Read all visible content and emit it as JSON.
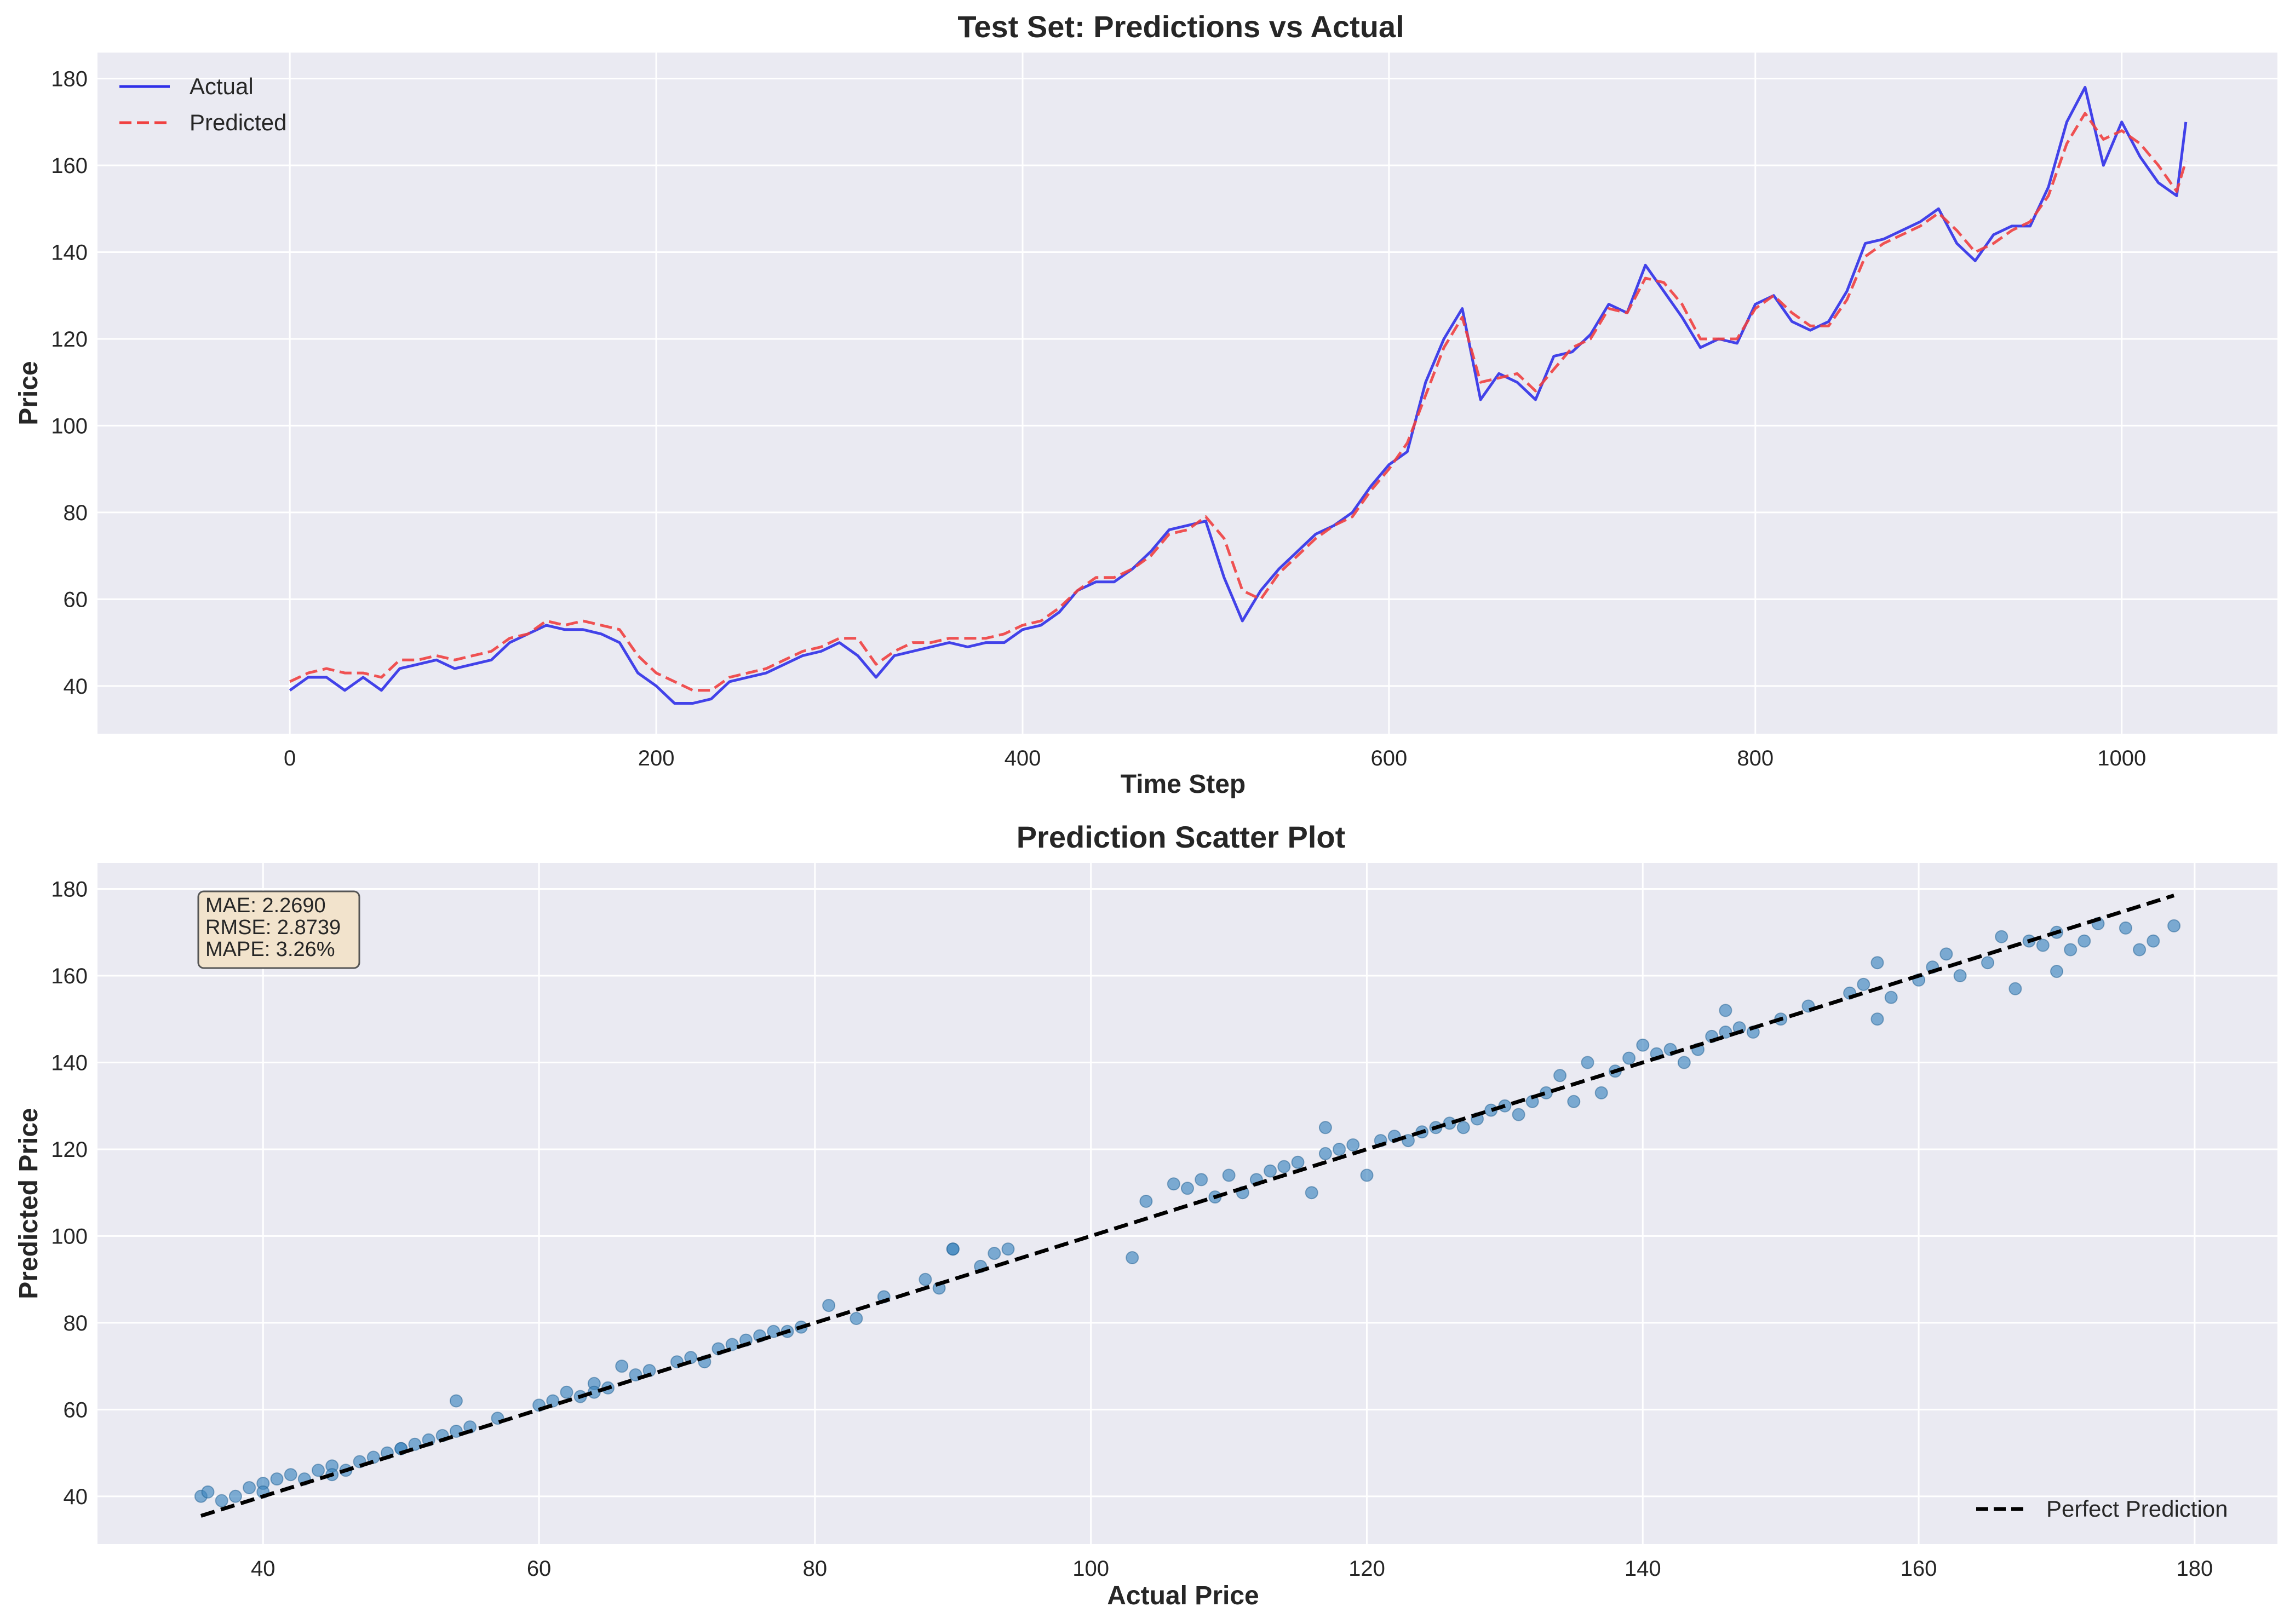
{
  "colors": {
    "actual": "#3030e8",
    "predicted": "#f04040",
    "scatter": "#3e86bf",
    "perfect": "#000000",
    "metrics_box_fill": "#f2e3cc",
    "metrics_box_stroke": "#555555"
  },
  "chart_data": [
    {
      "type": "line",
      "title": "Test Set: Predictions vs Actual",
      "xlabel": "Time Step",
      "ylabel": "Price",
      "xlim": [
        -105,
        1085
      ],
      "ylim": [
        29,
        186
      ],
      "xticks": [
        0,
        200,
        400,
        600,
        800,
        1000
      ],
      "yticks": [
        40,
        60,
        80,
        100,
        120,
        140,
        160,
        180
      ],
      "grid": true,
      "legend_position": "upper-left",
      "series": [
        {
          "name": "Actual",
          "style": "solid",
          "x": [
            0,
            10,
            20,
            30,
            40,
            50,
            60,
            70,
            80,
            90,
            100,
            110,
            120,
            130,
            140,
            150,
            160,
            170,
            180,
            190,
            200,
            210,
            220,
            230,
            240,
            250,
            260,
            270,
            280,
            290,
            300,
            310,
            320,
            330,
            340,
            350,
            360,
            370,
            380,
            390,
            400,
            410,
            420,
            430,
            440,
            450,
            460,
            470,
            480,
            490,
            500,
            510,
            520,
            530,
            540,
            550,
            560,
            570,
            580,
            590,
            600,
            610,
            620,
            630,
            640,
            650,
            660,
            670,
            680,
            690,
            700,
            710,
            720,
            730,
            740,
            750,
            760,
            770,
            780,
            790,
            800,
            810,
            820,
            830,
            840,
            850,
            860,
            870,
            880,
            890,
            900,
            910,
            920,
            930,
            940,
            950,
            960,
            970,
            980,
            990,
            1000,
            1010,
            1020,
            1030,
            1035
          ],
          "values": [
            39,
            42,
            42,
            39,
            42,
            39,
            44,
            45,
            46,
            44,
            45,
            46,
            50,
            52,
            54,
            53,
            53,
            52,
            50,
            43,
            40,
            36,
            36,
            37,
            41,
            42,
            43,
            45,
            47,
            48,
            50,
            47,
            42,
            47,
            48,
            49,
            50,
            49,
            50,
            50,
            53,
            54,
            57,
            62,
            64,
            64,
            67,
            71,
            76,
            77,
            78,
            65,
            55,
            62,
            67,
            71,
            75,
            77,
            80,
            86,
            91,
            94,
            110,
            120,
            127,
            106,
            112,
            110,
            106,
            116,
            117,
            121,
            128,
            126,
            137,
            131,
            125,
            118,
            120,
            119,
            128,
            130,
            124,
            122,
            124,
            131,
            142,
            143,
            145,
            147,
            150,
            142,
            138,
            144,
            146,
            146,
            155,
            170,
            178,
            160,
            170,
            162,
            156,
            153,
            170
          ]
        },
        {
          "name": "Predicted",
          "style": "dashed",
          "x": [
            0,
            10,
            20,
            30,
            40,
            50,
            60,
            70,
            80,
            90,
            100,
            110,
            120,
            130,
            140,
            150,
            160,
            170,
            180,
            190,
            200,
            210,
            220,
            230,
            240,
            250,
            260,
            270,
            280,
            290,
            300,
            310,
            320,
            330,
            340,
            350,
            360,
            370,
            380,
            390,
            400,
            410,
            420,
            430,
            440,
            450,
            460,
            470,
            480,
            490,
            500,
            510,
            520,
            530,
            540,
            550,
            560,
            570,
            580,
            590,
            600,
            610,
            620,
            630,
            640,
            650,
            660,
            670,
            680,
            690,
            700,
            710,
            720,
            730,
            740,
            750,
            760,
            770,
            780,
            790,
            800,
            810,
            820,
            830,
            840,
            850,
            860,
            870,
            880,
            890,
            900,
            910,
            920,
            930,
            940,
            950,
            960,
            970,
            980,
            990,
            1000,
            1010,
            1020,
            1030,
            1035
          ],
          "values": [
            41,
            43,
            44,
            43,
            43,
            42,
            46,
            46,
            47,
            46,
            47,
            48,
            51,
            52,
            55,
            54,
            55,
            54,
            53,
            47,
            43,
            41,
            39,
            39,
            42,
            43,
            44,
            46,
            48,
            49,
            51,
            51,
            45,
            48,
            50,
            50,
            51,
            51,
            51,
            52,
            54,
            55,
            58,
            62,
            65,
            65,
            67,
            70,
            75,
            76,
            79,
            74,
            62,
            60,
            66,
            70,
            74,
            77,
            79,
            85,
            90,
            96,
            107,
            118,
            125,
            110,
            111,
            112,
            108,
            113,
            118,
            120,
            127,
            126,
            134,
            133,
            128,
            120,
            120,
            120,
            127,
            130,
            126,
            123,
            123,
            129,
            139,
            142,
            144,
            146,
            149,
            145,
            140,
            142,
            145,
            147,
            153,
            165,
            172,
            166,
            168,
            165,
            160,
            154,
            161
          ]
        }
      ]
    },
    {
      "type": "scatter",
      "title": "Prediction Scatter Plot",
      "xlabel": "Actual Price",
      "ylabel": "Predicted Price",
      "xlim": [
        28,
        186
      ],
      "ylim": [
        29,
        186
      ],
      "xticks": [
        40,
        60,
        80,
        100,
        120,
        140,
        160,
        180
      ],
      "yticks": [
        40,
        60,
        80,
        100,
        120,
        140,
        160,
        180
      ],
      "grid": true,
      "legend_position": "lower-right",
      "metrics": [
        "MAE: 2.2690",
        "RMSE: 2.8739",
        "MAPE: 3.26%"
      ],
      "reference_line": {
        "name": "Perfect Prediction",
        "x": [
          35.5,
          178.5
        ],
        "y": [
          35.5,
          178.5
        ],
        "style": "dashed"
      },
      "series": [
        {
          "name": "",
          "x": [
            35.5,
            36,
            37,
            38,
            39,
            40,
            41,
            42,
            43,
            44,
            45,
            46,
            47,
            48,
            49,
            50,
            51,
            52,
            53,
            54,
            55,
            57,
            60,
            61,
            62,
            63,
            64,
            65,
            66,
            67,
            68,
            70,
            71,
            72,
            73,
            74,
            75,
            76,
            77,
            78,
            79,
            81,
            83,
            85,
            88,
            89,
            90,
            92,
            93,
            94,
            103,
            104,
            106,
            107,
            108,
            109,
            110,
            111,
            112,
            113,
            114,
            115,
            116,
            117,
            118,
            119,
            120,
            121,
            122,
            123,
            124,
            125,
            126,
            127,
            128,
            129,
            130,
            131,
            132,
            133,
            134,
            135,
            136,
            137,
            138,
            139,
            140,
            141,
            142,
            143,
            144,
            145,
            146,
            147,
            148,
            150,
            152,
            155,
            156,
            157,
            158,
            160,
            161,
            162,
            163,
            165,
            166,
            167,
            168,
            169,
            170,
            171,
            172,
            173,
            175,
            176,
            177,
            178.5,
            40,
            45,
            50,
            54,
            64,
            90,
            117,
            146,
            157,
            170
          ],
          "values": [
            40,
            41,
            39,
            40,
            42,
            43,
            44,
            45,
            44,
            46,
            47,
            46,
            48,
            49,
            50,
            51,
            52,
            53,
            54,
            55,
            56,
            58,
            61,
            62,
            64,
            63,
            66,
            65,
            70,
            68,
            69,
            71,
            72,
            71,
            74,
            75,
            76,
            77,
            78,
            78,
            79,
            84,
            81,
            86,
            90,
            88,
            97,
            93,
            96,
            97,
            95,
            108,
            112,
            111,
            113,
            109,
            114,
            110,
            113,
            115,
            116,
            117,
            110,
            119,
            120,
            121,
            114,
            122,
            123,
            122,
            124,
            125,
            126,
            125,
            127,
            129,
            130,
            128,
            131,
            133,
            137,
            131,
            140,
            133,
            138,
            141,
            144,
            142,
            143,
            140,
            143,
            146,
            147,
            148,
            147,
            150,
            153,
            156,
            158,
            163,
            155,
            159,
            162,
            165,
            160,
            163,
            169,
            157,
            168,
            167,
            170,
            166,
            168,
            172,
            171,
            166,
            168,
            171.5,
            41,
            45,
            51,
            62,
            64,
            97,
            125,
            152,
            150,
            161
          ]
        }
      ]
    }
  ]
}
